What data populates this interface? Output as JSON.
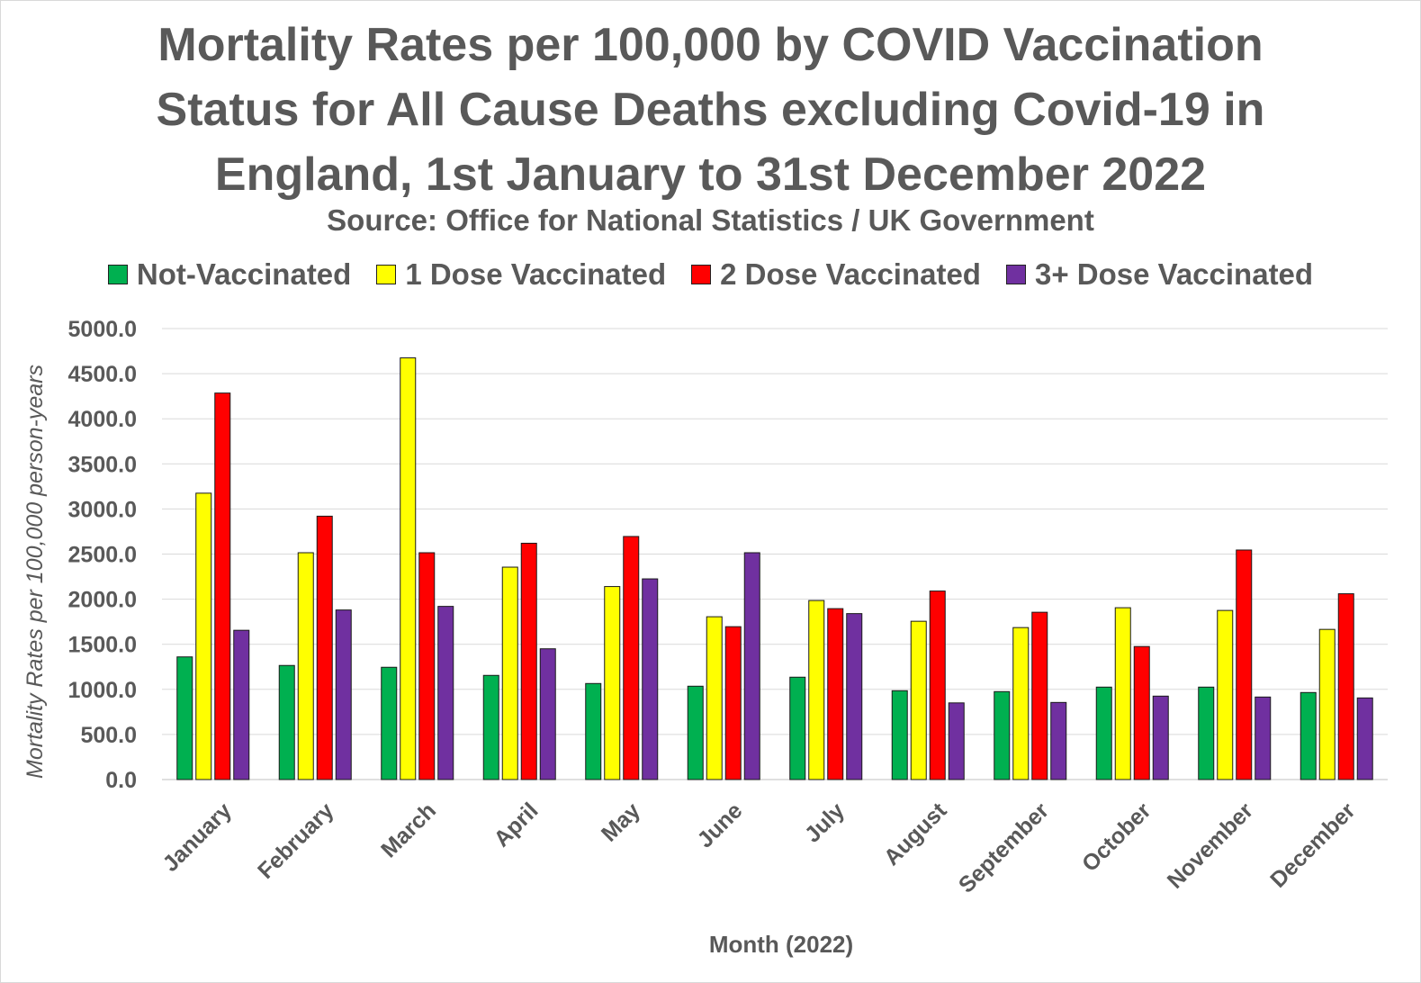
{
  "chart_data": {
    "type": "bar",
    "title_lines": [
      "Mortality Rates per 100,000 by COVID Vaccination",
      "Status for All Cause Deaths excluding Covid-19 in",
      "England, 1st January to 31st December 2022"
    ],
    "subtitle": "Source: Office for National Statistics / UK Government",
    "xlabel": "Month (2022)",
    "ylabel": "Mortality Rates per 100,000 person-years",
    "ylim": [
      0,
      5000
    ],
    "yticks": [
      "0.0",
      "500.0",
      "1000.0",
      "1500.0",
      "2000.0",
      "2500.0",
      "3000.0",
      "3500.0",
      "4000.0",
      "4500.0",
      "5000.0"
    ],
    "grid": true,
    "legend_position": "top",
    "categories": [
      "January",
      "February",
      "March",
      "April",
      "May",
      "June",
      "July",
      "August",
      "September",
      "October",
      "November",
      "December"
    ],
    "series": [
      {
        "name": "Not-Vaccinated",
        "color": "#00b050",
        "values": [
          1360,
          1265,
          1245,
          1155,
          1065,
          1035,
          1135,
          985,
          975,
          1025,
          1025,
          965
        ]
      },
      {
        "name": "1 Dose Vaccinated",
        "color": "#ffff00",
        "values": [
          3175,
          2515,
          4675,
          2355,
          2140,
          1805,
          1985,
          1755,
          1685,
          1905,
          1875,
          1665
        ]
      },
      {
        "name": "2 Dose Vaccinated",
        "color": "#ff0000",
        "values": [
          4285,
          2920,
          2515,
          2620,
          2695,
          1695,
          1895,
          2090,
          1855,
          1475,
          2545,
          2060
        ]
      },
      {
        "name": "3+ Dose Vaccinated",
        "color": "#7030a0",
        "values": [
          1655,
          1880,
          1920,
          1450,
          2225,
          2515,
          1840,
          850,
          855,
          925,
          915,
          905
        ]
      }
    ]
  }
}
